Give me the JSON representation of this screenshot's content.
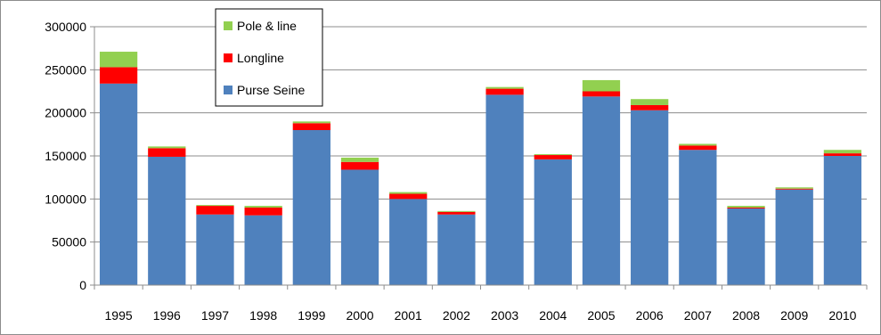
{
  "chart_data": {
    "type": "bar",
    "stacked": true,
    "title": "",
    "xlabel": "",
    "ylabel": "",
    "categories": [
      "1995",
      "1996",
      "1997",
      "1998",
      "1999",
      "2000",
      "2001",
      "2002",
      "2003",
      "2004",
      "2005",
      "2006",
      "2007",
      "2008",
      "2009",
      "2010"
    ],
    "series": [
      {
        "name": "Purse Seine",
        "color": "#4f81bd",
        "values": [
          234000,
          149000,
          82000,
          81000,
          180000,
          134000,
          100000,
          82000,
          221000,
          146000,
          219000,
          203000,
          157000,
          89000,
          111000,
          150000
        ]
      },
      {
        "name": "Longline",
        "color": "#ff0000",
        "values": [
          19000,
          10000,
          10000,
          9000,
          8000,
          9000,
          6000,
          3000,
          7000,
          5000,
          6000,
          6000,
          5000,
          1000,
          1000,
          3000
        ]
      },
      {
        "name": "Pole & line",
        "color": "#92d050",
        "values": [
          18000,
          2000,
          1000,
          2000,
          2000,
          5000,
          2000,
          1000,
          2000,
          1000,
          13000,
          7000,
          2000,
          2000,
          1500,
          4000
        ]
      }
    ],
    "ylim": [
      0,
      300000
    ],
    "yticks": [
      "0",
      "50000",
      "100000",
      "150000",
      "200000",
      "250000",
      "300000"
    ],
    "grid": true,
    "legend": {
      "placement": "top-left",
      "entries": [
        "Pole & line",
        "Longline",
        "Purse Seine"
      ]
    },
    "colors": {
      "grid": "#8c8c8c",
      "axis": "#8c8c8c",
      "frame": "#8c8c8c"
    }
  }
}
